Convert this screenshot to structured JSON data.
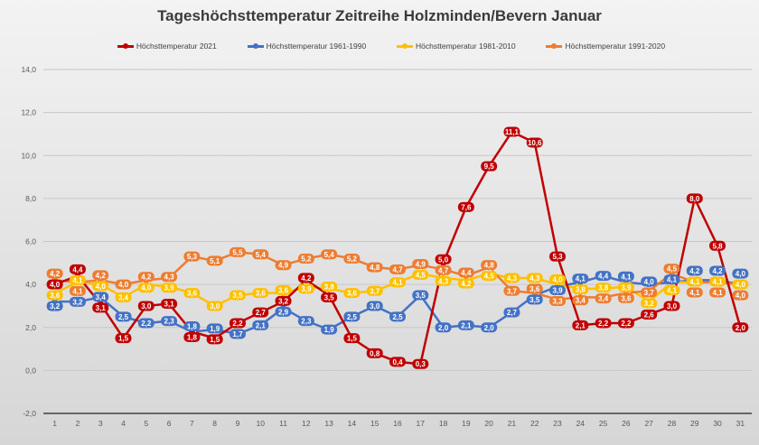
{
  "chart_data": {
    "type": "line",
    "title": "Tageshöchsttemperatur Zeitreihe Holzminden/Bevern Januar",
    "xlabel": "",
    "ylabel": "",
    "ylim": [
      -2,
      14
    ],
    "yticks": [
      "-2,0",
      "0,0",
      "2,0",
      "4,0",
      "6,0",
      "8,0",
      "10,0",
      "12,0",
      "14,0"
    ],
    "ytick_values": [
      -2,
      0,
      2,
      4,
      6,
      8,
      10,
      12,
      14
    ],
    "categories": [
      "1",
      "2",
      "3",
      "4",
      "5",
      "6",
      "7",
      "8",
      "9",
      "10",
      "11",
      "12",
      "13",
      "14",
      "15",
      "16",
      "17",
      "18",
      "19",
      "20",
      "21",
      "22",
      "23",
      "24",
      "25",
      "26",
      "27",
      "28",
      "29",
      "30",
      "31"
    ],
    "grid": true,
    "legend_position": "top",
    "series": [
      {
        "name": "Höchsttemperatur 1961-1990",
        "color": "#4472c4",
        "values": [
          3.2,
          3.2,
          3.4,
          2.5,
          2.2,
          2.3,
          1.8,
          1.9,
          1.7,
          2.1,
          2.9,
          2.3,
          1.9,
          2.5,
          3.0,
          2.5,
          3.5,
          2.0,
          2.1,
          2.0,
          2.7,
          3.5,
          3.9,
          4.1,
          4.4,
          4.1,
          4.0,
          4.1,
          4.2,
          4.2,
          4.0
        ]
      },
      {
        "name": "Höchsttemperatur 1981-2010",
        "color": "#ffc000",
        "values": [
          3.6,
          4.1,
          4.0,
          3.4,
          4.0,
          3.9,
          3.6,
          3.0,
          3.5,
          3.6,
          3.6,
          3.9,
          3.8,
          3.6,
          3.7,
          4.1,
          4.5,
          4.3,
          4.2,
          4.5,
          4.3,
          4.3,
          4.0,
          3.8,
          3.8,
          3.9,
          3.2,
          4.1,
          4.1,
          4.1,
          4.0
        ]
      },
      {
        "name": "Höchsttemperatur 1991-2020",
        "color": "#ed7d31",
        "values": [
          4.2,
          4.1,
          4.2,
          4.0,
          4.2,
          4.3,
          5.3,
          5.1,
          5.5,
          5.4,
          4.9,
          5.2,
          5.4,
          5.2,
          4.8,
          4.7,
          4.9,
          4.7,
          4.4,
          4.8,
          3.7,
          3.6,
          3.3,
          3.4,
          3.4,
          3.6,
          3.7,
          4.5,
          4.1,
          4.1,
          4.0
        ]
      },
      {
        "name": "Höchsttemperatur 2021",
        "color": "#c00000",
        "values": [
          4.0,
          4.4,
          3.1,
          1.5,
          3.0,
          3.1,
          1.8,
          1.5,
          2.2,
          2.7,
          3.2,
          4.2,
          3.5,
          1.5,
          0.8,
          0.4,
          0.3,
          5.0,
          7.6,
          9.5,
          11.1,
          10.6,
          5.3,
          2.1,
          2.2,
          2.2,
          2.6,
          3.0,
          8.0,
          5.8,
          2.0
        ]
      }
    ],
    "legend_order": [
      "Höchsttemperatur 2021",
      "Höchsttemperatur 1961-1990",
      "Höchsttemperatur 1981-2010",
      "Höchsttemperatur 1991-2020"
    ],
    "legend_colors": [
      "#c00000",
      "#4472c4",
      "#ffc000",
      "#ed7d31"
    ]
  }
}
